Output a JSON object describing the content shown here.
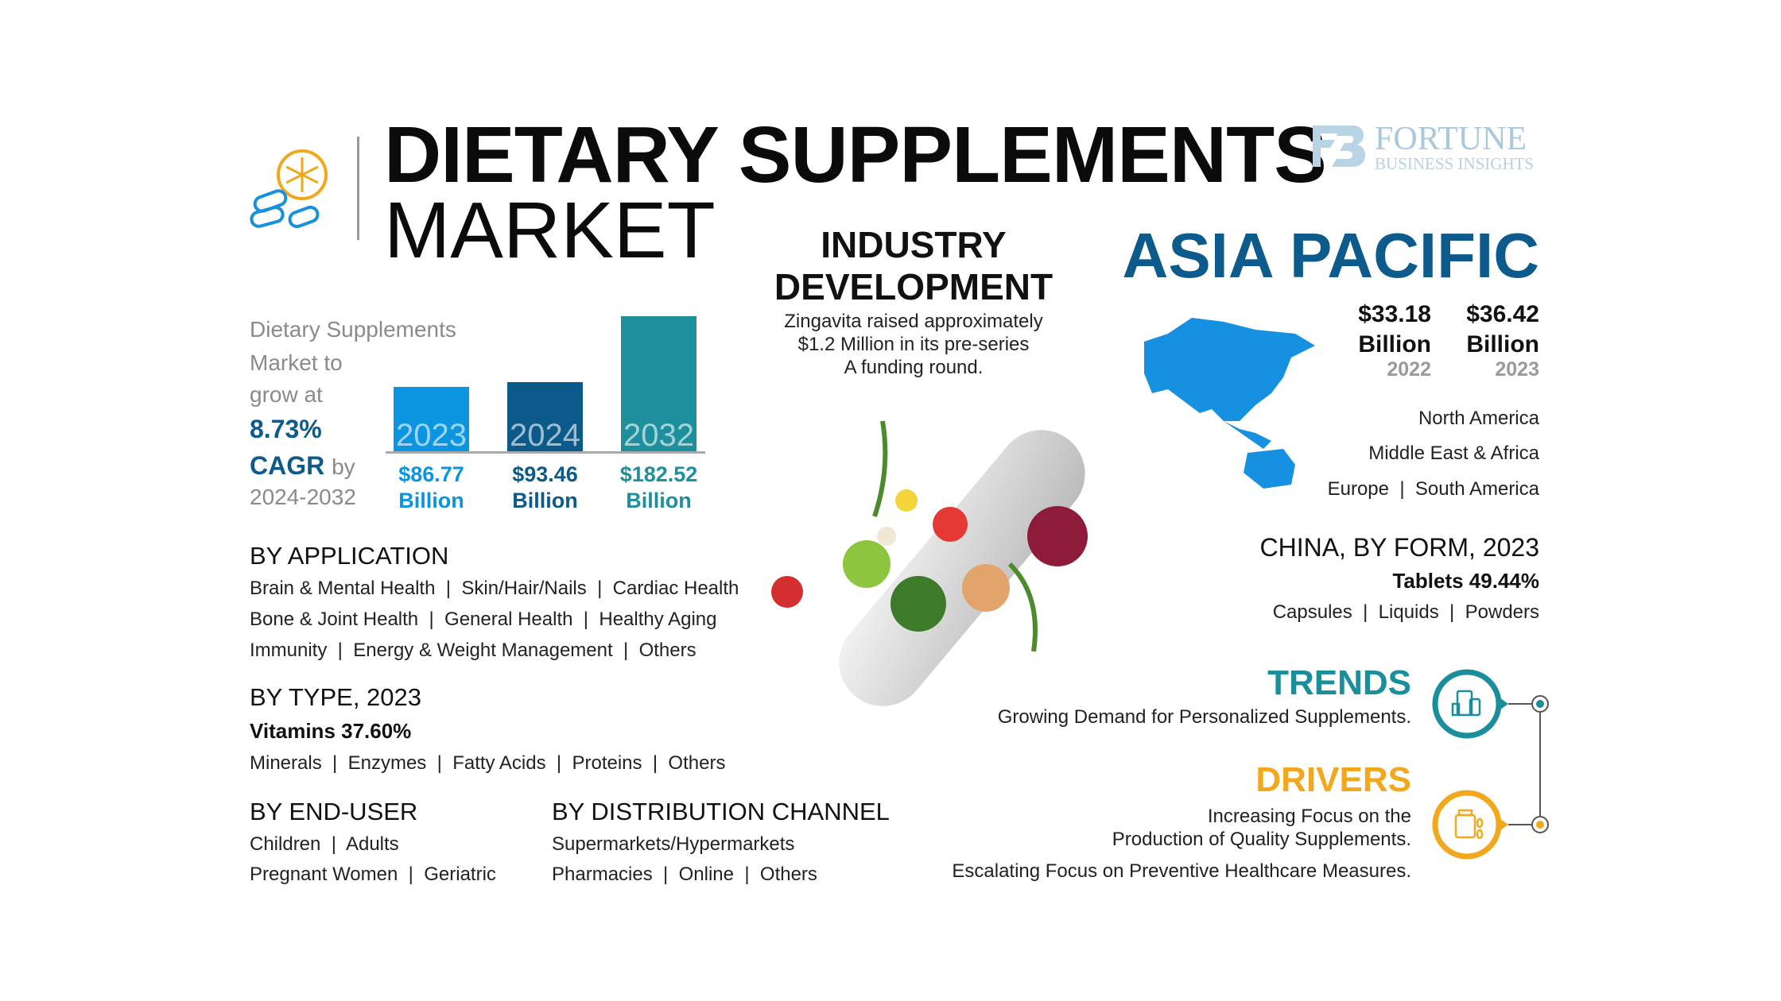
{
  "header": {
    "title_line1": "DIETARY SUPPLEMENTS",
    "title_line2": "MARKET",
    "brand_line1": "FORTUNE",
    "brand_line2": "BUSINESS INSIGHTS"
  },
  "growth": {
    "line1": "Dietary Supplements",
    "line2": "Market to",
    "line3": "grow at",
    "cagr_value": "8.73%",
    "cagr_label": "CAGR",
    "by": "by",
    "period": "2024-2032"
  },
  "chart_data": {
    "type": "bar",
    "categories": [
      "2023",
      "2024",
      "2032"
    ],
    "values": [
      86.77,
      93.46,
      182.52
    ],
    "value_labels": [
      "$86.77",
      "$93.46",
      "$182.52"
    ],
    "unit_label": "Billion",
    "colors": [
      "#0b95e0",
      "#0b5a8a",
      "#1e8f9c"
    ]
  },
  "industry": {
    "title1": "INDUSTRY",
    "title2": "DEVELOPMENT",
    "body": [
      "Zingavita raised approximately",
      "$1.2 Million in its pre-series",
      "A funding round."
    ]
  },
  "region": {
    "title": "ASIA PACIFIC",
    "stats": [
      {
        "value": "$33.18",
        "unit": "Billion",
        "year": "2022"
      },
      {
        "value": "$36.42",
        "unit": "Billion",
        "year": "2023"
      }
    ],
    "others": [
      "North America",
      "Middle East & Africa",
      "Europe  |  South America"
    ],
    "color": "#0d5a8c",
    "map_color": "#1690e0"
  },
  "china": {
    "title": "CHINA, BY FORM, 2023",
    "highlight": "Tablets 49.44%",
    "others": "Capsules  |  Liquids  |  Powders"
  },
  "trends": {
    "title": "TRENDS",
    "text": "Growing Demand for Personalized Supplements.",
    "color": "#1a8e9b",
    "icon": "supplement-bottles-icon"
  },
  "drivers": {
    "title": "DRIVERS",
    "text": [
      "Increasing Focus on the",
      "Production of Quality Supplements.",
      "Escalating Focus on Preventive Healthcare Measures."
    ],
    "color": "#f2a81d",
    "icon": "supplement-jar-icon"
  },
  "application": {
    "title": "BY APPLICATION",
    "lines": [
      "Brain & Mental Health  |  Skin/Hair/Nails  |  Cardiac Health",
      "Bone & Joint Health  |  General Health  |  Healthy Aging",
      "Immunity  |  Energy & Weight Management  |  Others"
    ]
  },
  "type": {
    "title": "BY TYPE, 2023",
    "highlight": "Vitamins 37.60%",
    "others": "Minerals  |  Enzymes  |  Fatty Acids  |  Proteins  |  Others"
  },
  "end_user": {
    "title": "BY END-USER",
    "lines": [
      "Children  |  Adults",
      "Pregnant Women  |  Geriatric"
    ]
  },
  "distribution": {
    "title": "BY DISTRIBUTION CHANNEL",
    "lines": [
      "Supermarkets/Hypermarkets",
      "Pharmacies  |  Online  |  Others"
    ]
  }
}
